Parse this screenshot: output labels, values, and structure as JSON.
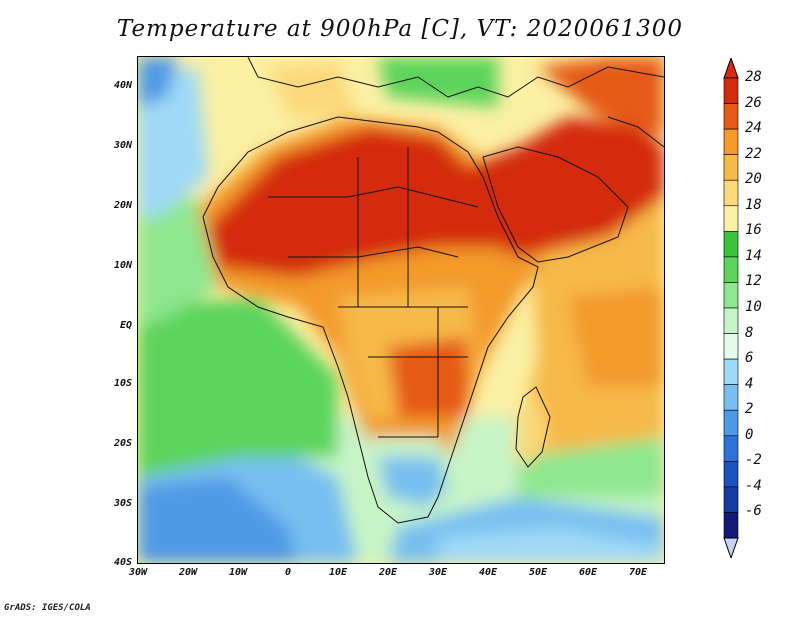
{
  "title": "Temperature at 900hPa [C], VT: 2020061300",
  "footer": "GrADS: IGES/COLA",
  "map": {
    "variable": "Temperature",
    "level": "900hPa",
    "units": "C",
    "valid_time": "2020061300",
    "lon_range": [
      -30,
      75
    ],
    "lat_range": [
      -40,
      45
    ],
    "lat_ticks": [
      "40N",
      "30N",
      "20N",
      "10N",
      "EQ",
      "10S",
      "20S",
      "30S",
      "40S"
    ],
    "lon_ticks": [
      "30W",
      "20W",
      "10W",
      "0",
      "10E",
      "20E",
      "30E",
      "40E",
      "50E",
      "60E",
      "70E"
    ]
  },
  "colorbar": {
    "labels": [
      "28",
      "26",
      "24",
      "22",
      "20",
      "18",
      "16",
      "14",
      "12",
      "10",
      "8",
      "6",
      "4",
      "2",
      "0",
      "-2",
      "-4",
      "-6"
    ],
    "colors": [
      "#d42a10",
      "#e55a18",
      "#f39a2a",
      "#f7b94a",
      "#fbd97a",
      "#fbf0a4",
      "#3cc23c",
      "#5cd45c",
      "#8ee68e",
      "#c7f4c7",
      "#e4fbe9",
      "#9fd9f7",
      "#77bff0",
      "#4f9ae6",
      "#2c72d8",
      "#1a52c0",
      "#163ba0",
      "#111c78"
    ],
    "tip_top_color": "#d42a10",
    "tip_bottom_color": "#c7d2f4"
  }
}
